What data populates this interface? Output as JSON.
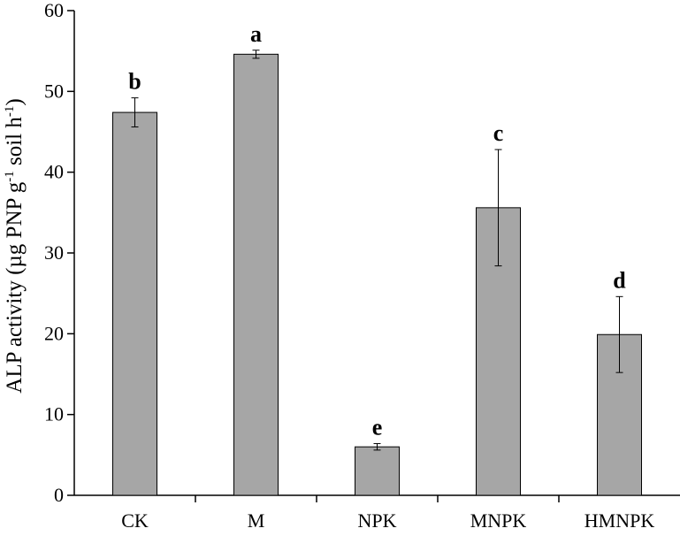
{
  "chart_data": {
    "type": "bar",
    "title": "",
    "xlabel": "",
    "ylabel": {
      "prefix": "ALP activity (µg PNP g",
      "sup1": "-1",
      "middle": " soil h",
      "sup2": "-1",
      "suffix": ")"
    },
    "ylim": [
      0,
      60
    ],
    "yticks": [
      0,
      10,
      20,
      30,
      40,
      50,
      60
    ],
    "categories": [
      "CK",
      "M",
      "NPK",
      "MNPK",
      "HMNPK"
    ],
    "series": [
      {
        "values": [
          47.4,
          54.6,
          6.0,
          35.6,
          19.9
        ],
        "errors": [
          1.8,
          0.5,
          0.4,
          7.2,
          4.7
        ],
        "significance": [
          "b",
          "a",
          "e",
          "c",
          "d"
        ]
      }
    ],
    "grid": false,
    "bar_color": "#a6a6a6",
    "bar_stroke": "#000000"
  }
}
